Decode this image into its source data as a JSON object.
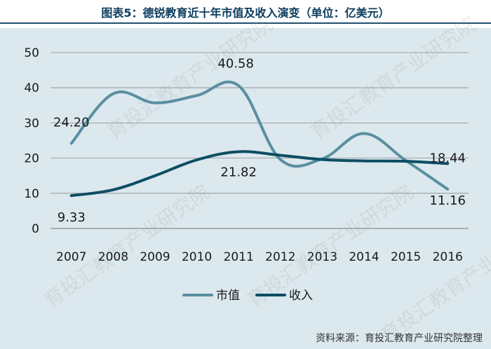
{
  "title": "图表5：德锐教育近十年市值及收入演变（单位：亿美元）",
  "source": "资料来源：育投汇教育产业研究院整理",
  "watermark": "育投汇教育产业研究院",
  "colors": {
    "background": "#dbe8ee",
    "series_1": "#5a8fa0",
    "series_2": "#0d4d63",
    "grid": "#8a8a8a"
  },
  "chart_data": {
    "type": "line",
    "categories": [
      "2007",
      "2008",
      "2009",
      "2010",
      "2011",
      "2012",
      "2013",
      "2014",
      "2015",
      "2016"
    ],
    "series": [
      {
        "name": "市值",
        "values": [
          24.2,
          38.3,
          35.7,
          37.8,
          40.58,
          19.6,
          19.8,
          27.0,
          19.3,
          11.16
        ]
      },
      {
        "name": "收入",
        "values": [
          9.33,
          11.0,
          15.0,
          19.5,
          21.82,
          20.8,
          19.6,
          19.2,
          19.1,
          18.44
        ]
      }
    ],
    "ylim": [
      0,
      50
    ],
    "yticks": [
      0,
      10,
      20,
      30,
      40,
      50
    ],
    "grid": true,
    "legend": "bottom",
    "smooth": true,
    "data_labels": [
      {
        "series": 0,
        "index": 0,
        "text": "24.20"
      },
      {
        "series": 0,
        "index": 4,
        "text": "40.58"
      },
      {
        "series": 0,
        "index": 9,
        "text": "11.16"
      },
      {
        "series": 1,
        "index": 0,
        "text": "9.33"
      },
      {
        "series": 1,
        "index": 4,
        "text": "21.82"
      },
      {
        "series": 1,
        "index": 9,
        "text": "18.44"
      }
    ]
  }
}
